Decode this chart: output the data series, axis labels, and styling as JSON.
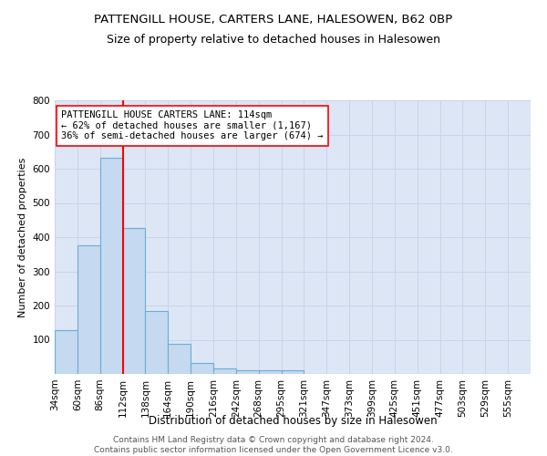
{
  "title1": "PATTENGILL HOUSE, CARTERS LANE, HALESOWEN, B62 0BP",
  "title2": "Size of property relative to detached houses in Halesowen",
  "xlabel": "Distribution of detached houses by size in Halesowen",
  "ylabel": "Number of detached properties",
  "categories": [
    "34sqm",
    "60sqm",
    "86sqm",
    "112sqm",
    "138sqm",
    "164sqm",
    "190sqm",
    "216sqm",
    "242sqm",
    "268sqm",
    "295sqm",
    "321sqm",
    "347sqm",
    "373sqm",
    "399sqm",
    "425sqm",
    "451sqm",
    "477sqm",
    "503sqm",
    "529sqm",
    "555sqm"
  ],
  "bar_heights": [
    128,
    375,
    633,
    428,
    183,
    88,
    32,
    16,
    10,
    10,
    10,
    0,
    0,
    0,
    0,
    0,
    0,
    0,
    0,
    0,
    0
  ],
  "bar_color": "#c5d9f0",
  "bar_edge_color": "#6aaed6",
  "red_line_index": 3,
  "annotation_text": "PATTENGILL HOUSE CARTERS LANE: 114sqm\n← 62% of detached houses are smaller (1,167)\n36% of semi-detached houses are larger (674) →",
  "annotation_box_color": "white",
  "annotation_box_edge_color": "red",
  "ylim": [
    0,
    800
  ],
  "yticks": [
    0,
    100,
    200,
    300,
    400,
    500,
    600,
    700,
    800
  ],
  "grid_color": "#c8d4e8",
  "background_color": "#dce6f5",
  "footer_text": "Contains HM Land Registry data © Crown copyright and database right 2024.\nContains public sector information licensed under the Open Government Licence v3.0.",
  "title1_fontsize": 9.5,
  "title2_fontsize": 9,
  "xlabel_fontsize": 8.5,
  "ylabel_fontsize": 8,
  "annotation_fontsize": 7.5,
  "footer_fontsize": 6.5,
  "tick_fontsize": 7.5
}
